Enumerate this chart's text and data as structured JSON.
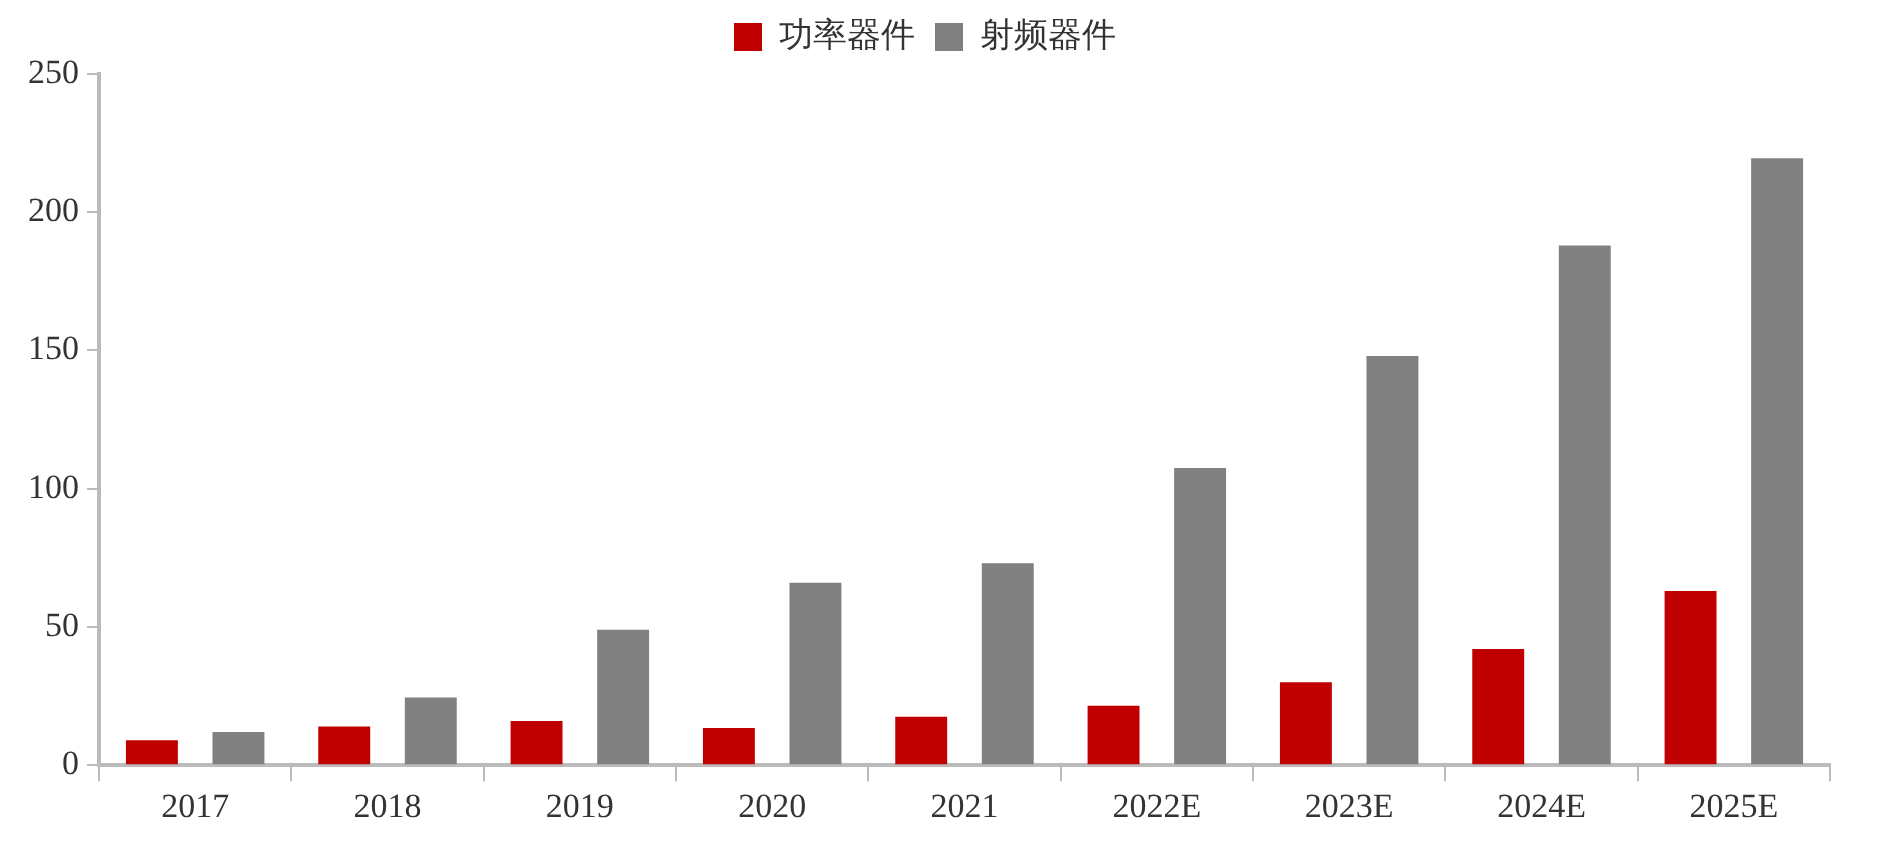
{
  "chart_data": {
    "type": "bar",
    "categories": [
      "2017",
      "2018",
      "2019",
      "2020",
      "2021",
      "2022E",
      "2023E",
      "2024E",
      "2025E"
    ],
    "series": [
      {
        "name": "功率器件",
        "color": "#c00000",
        "values": [
          9,
          14,
          16,
          13.5,
          17.5,
          21.5,
          30,
          42,
          63
        ]
      },
      {
        "name": "射频器件",
        "color": "#808080",
        "values": [
          12,
          24.5,
          49,
          66,
          73,
          107.5,
          148,
          188,
          219.5
        ]
      }
    ],
    "ylim": [
      0,
      250
    ],
    "yticks": [
      0,
      50,
      100,
      150,
      200,
      250
    ],
    "grid": false,
    "legend": "top"
  }
}
